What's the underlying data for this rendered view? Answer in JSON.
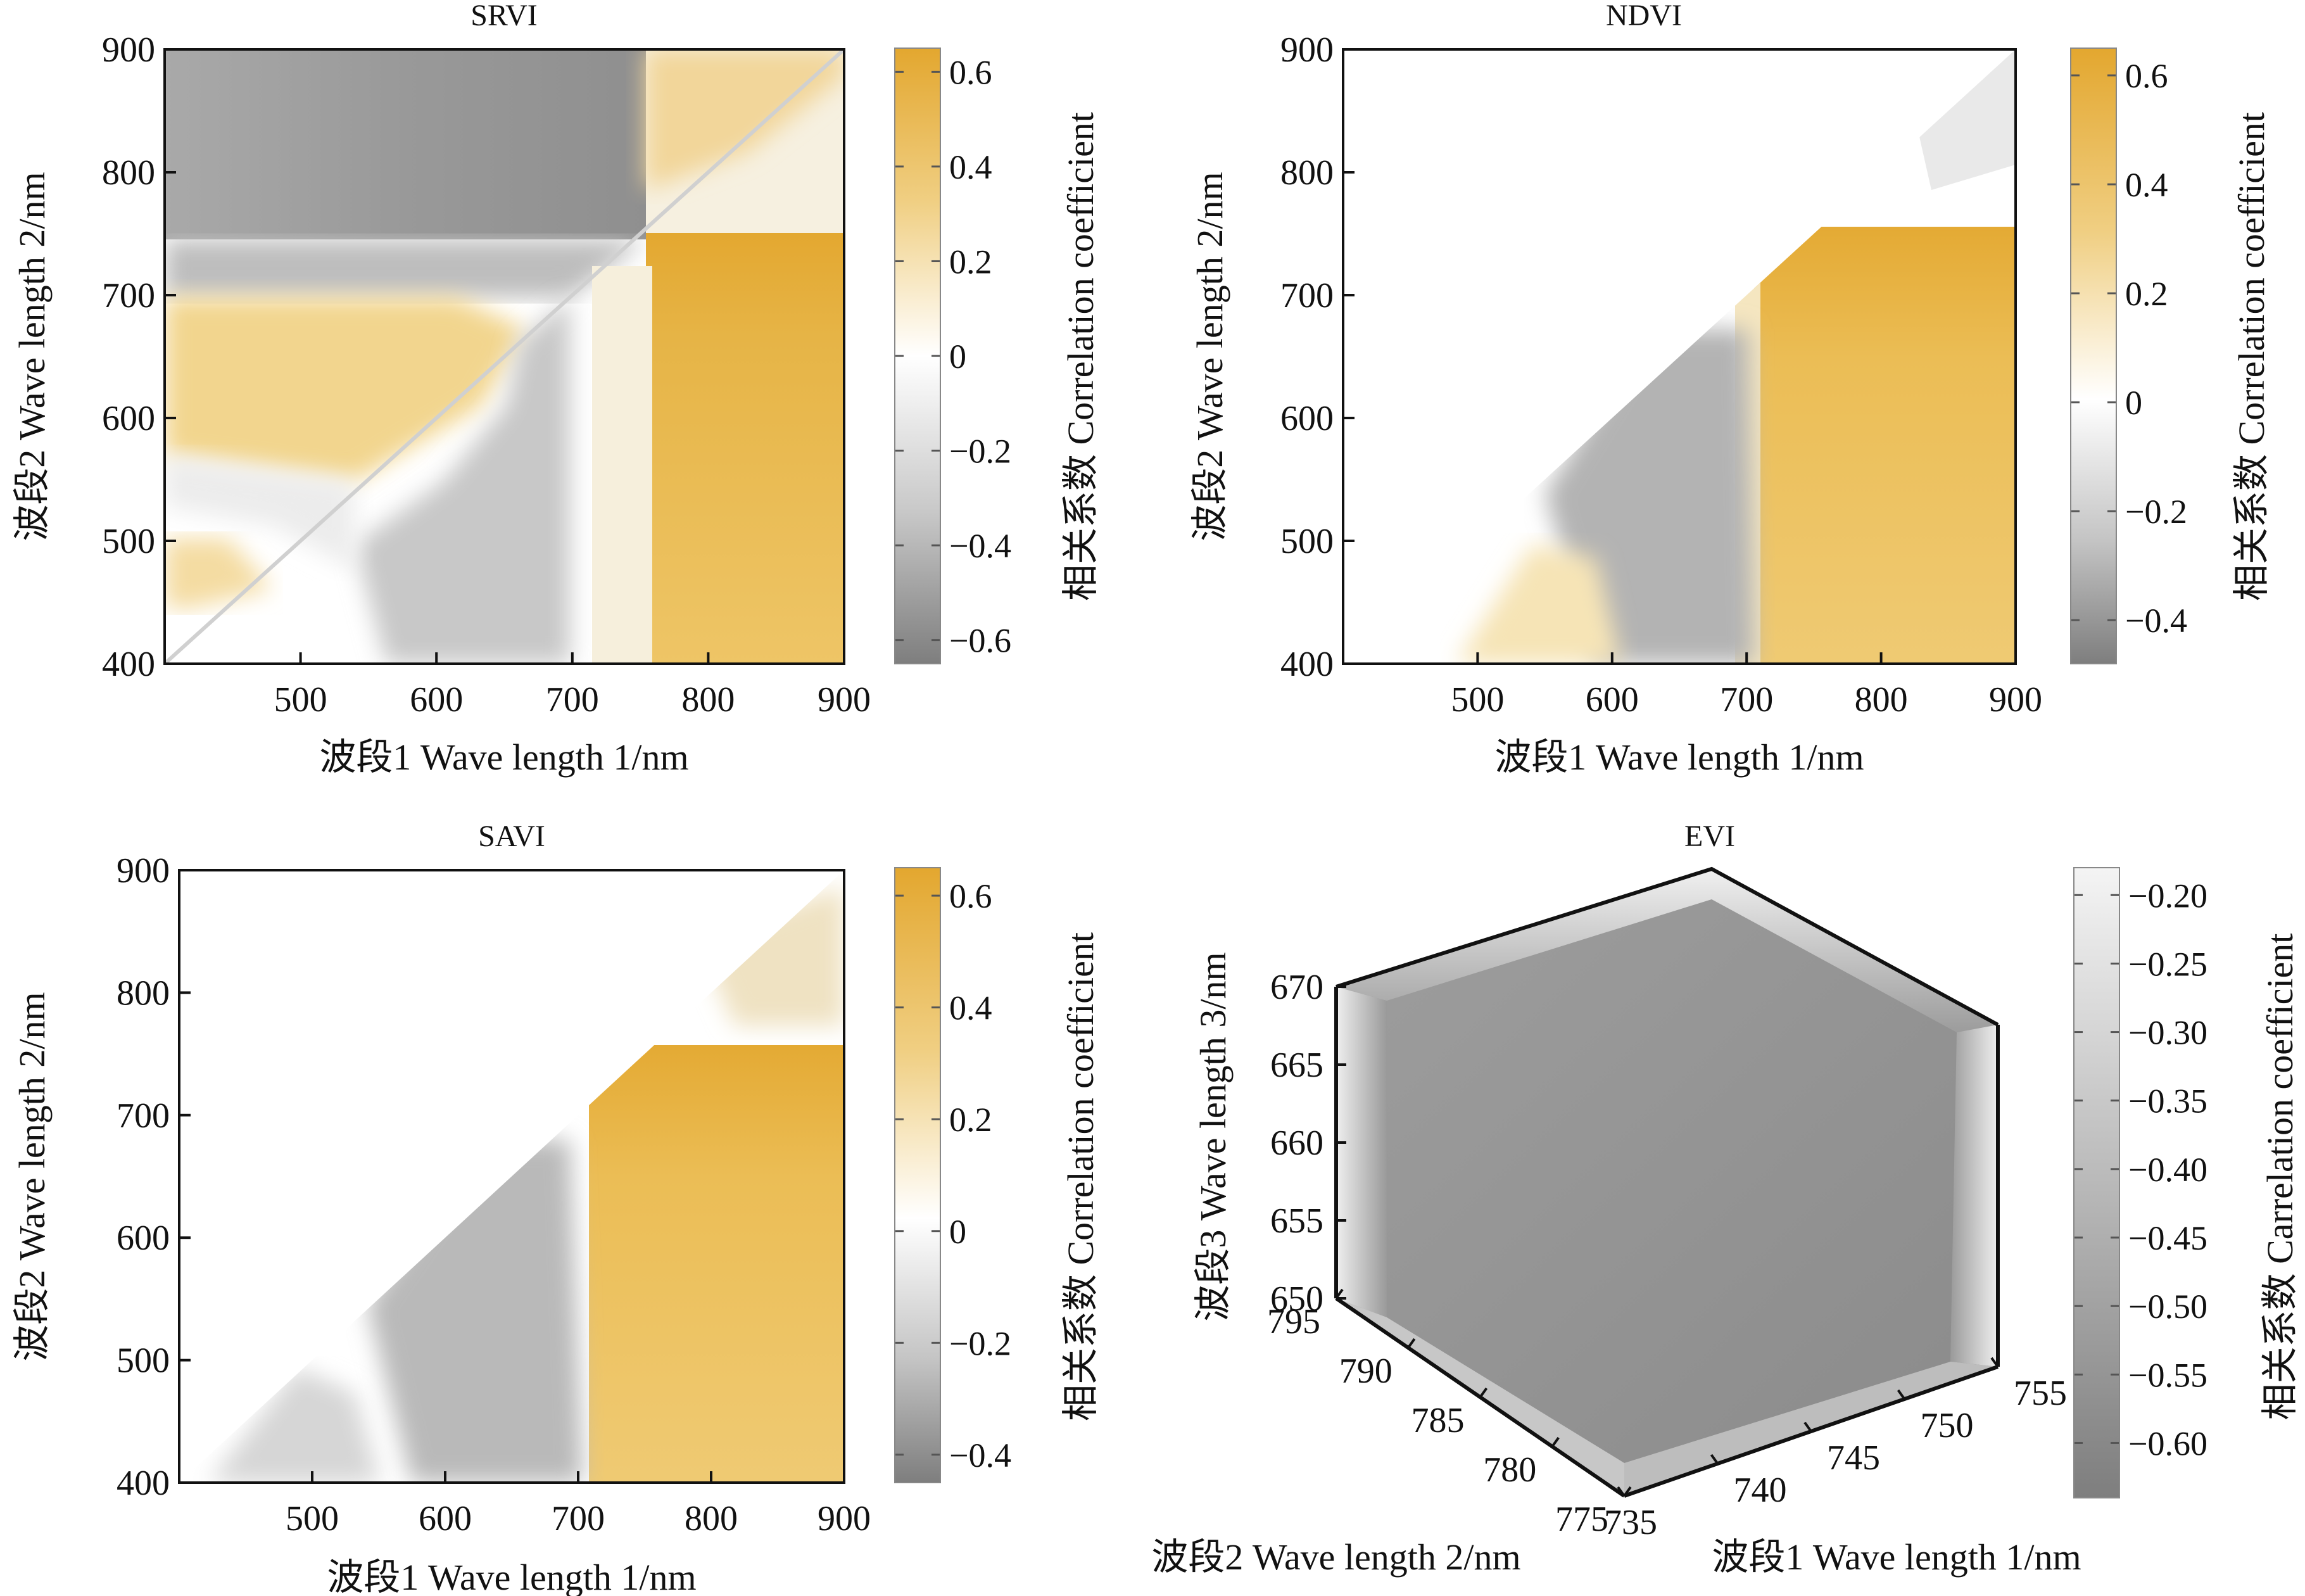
{
  "figure_title": "",
  "colors": {
    "positive_max": "#e3a72f",
    "positive_mid": "#f3dca0",
    "zero": "#ffffff",
    "negative_mid": "#cfcfcf",
    "negative_max": "#7e7e7e",
    "axis": "#111111"
  },
  "chart_data": [
    {
      "id": "srvi",
      "type": "heatmap",
      "title": "SRVI",
      "xlabel": "波段1 Wave length 1/nm",
      "ylabel": "波段2 Wave length 2/nm",
      "xlim": [
        400,
        900
      ],
      "ylim": [
        400,
        900
      ],
      "xticks": [
        "500",
        "600",
        "700",
        "800",
        "900"
      ],
      "yticks": [
        "400",
        "500",
        "600",
        "700",
        "800",
        "900"
      ],
      "triangle": "full",
      "colorbar": {
        "label": "相关系数 Correlation coefficient",
        "range": [
          -0.65,
          0.65
        ],
        "ticks": [
          "0.6",
          "0.4",
          "0.2",
          "0",
          "−0.2",
          "−0.4",
          "−0.6"
        ],
        "tick_values": [
          0.6,
          0.4,
          0.2,
          0,
          -0.2,
          -0.4,
          -0.6
        ]
      },
      "regions": [
        {
          "desc": "x 750-900, y 400-750 (below diagonal)",
          "value": 0.55
        },
        {
          "desc": "x 700-750, y 400-750",
          "value": 0.05
        },
        {
          "desc": "x 560-700, y 400-650",
          "value": -0.2
        },
        {
          "desc": "x 400-750, y 750-900 (above diagonal)",
          "value": -0.5
        },
        {
          "desc": "x 400-700, y 600-690",
          "value": 0.3
        },
        {
          "desc": "x 750-900, y 750-900",
          "value": 0.1
        }
      ]
    },
    {
      "id": "ndvi",
      "type": "heatmap",
      "title": "NDVI",
      "xlabel": "波段1 Wave length 1/nm",
      "ylabel": "波段2 Wave length 2/nm",
      "xlim": [
        400,
        900
      ],
      "ylim": [
        400,
        900
      ],
      "xticks": [
        "500",
        "600",
        "700",
        "800",
        "900"
      ],
      "yticks": [
        "400",
        "500",
        "600",
        "700",
        "800",
        "900"
      ],
      "triangle": "lower",
      "colorbar": {
        "label": "相关系数 Correlation coefficient",
        "range": [
          -0.48,
          0.65
        ],
        "ticks": [
          "0.6",
          "0.4",
          "0.2",
          "0",
          "−0.2",
          "−0.4"
        ],
        "tick_values": [
          0.6,
          0.4,
          0.2,
          0,
          -0.2,
          -0.4
        ]
      },
      "regions": [
        {
          "desc": "x 700-900, y 400-750",
          "value": 0.55
        },
        {
          "desc": "x 560-700, y 400-670",
          "value": -0.3
        },
        {
          "desc": "x 420-560, y 400-560",
          "value": 0.1
        }
      ]
    },
    {
      "id": "savi",
      "type": "heatmap",
      "title": "SAVI",
      "xlabel": "波段1 Wave length 1/nm",
      "ylabel": "波段2 Wave length 2/nm",
      "xlim": [
        400,
        900
      ],
      "ylim": [
        400,
        900
      ],
      "xticks": [
        "500",
        "600",
        "700",
        "800",
        "900"
      ],
      "yticks": [
        "400",
        "500",
        "600",
        "700",
        "800",
        "900"
      ],
      "triangle": "lower",
      "colorbar": {
        "label": "相关系数 Correlation coefficient",
        "range": [
          -0.45,
          0.65
        ],
        "ticks": [
          "0.6",
          "0.4",
          "0.2",
          "0",
          "−0.2",
          "−0.4"
        ],
        "tick_values": [
          0.6,
          0.4,
          0.2,
          0,
          -0.2,
          -0.4
        ]
      },
      "regions": [
        {
          "desc": "x 710-900, y 400-760",
          "value": 0.55
        },
        {
          "desc": "x 550-700, y 400-770",
          "value": -0.25
        },
        {
          "desc": "x 420-550, y 400-560",
          "value": -0.05
        }
      ]
    },
    {
      "id": "evi",
      "type": "heatmap",
      "title": "EVI",
      "projection": "3d-cube",
      "xlabel": "波段1 Wave length 1/nm",
      "ylabel": "波段2 Wave length 2/nm",
      "zlabel": "波段3 Wave length 3/nm",
      "xlim": [
        735,
        755
      ],
      "ylim": [
        775,
        795
      ],
      "zlim": [
        650,
        670
      ],
      "xticks": [
        "735",
        "740",
        "745",
        "750",
        "755"
      ],
      "yticks": [
        "775",
        "780",
        "785",
        "790",
        "795"
      ],
      "zticks": [
        "650",
        "655",
        "660",
        "665",
        "670"
      ],
      "colorbar": {
        "label": "相关系数 Carrelation coefficient",
        "range": [
          -0.64,
          -0.18
        ],
        "ticks": [
          "−0.20",
          "−0.25",
          "−0.30",
          "−0.35",
          "−0.40",
          "−0.45",
          "−0.50",
          "−0.55",
          "−0.60"
        ],
        "tick_values": [
          -0.2,
          -0.25,
          -0.3,
          -0.35,
          -0.4,
          -0.45,
          -0.5,
          -0.55,
          -0.6
        ]
      },
      "typical_value": -0.55
    }
  ]
}
